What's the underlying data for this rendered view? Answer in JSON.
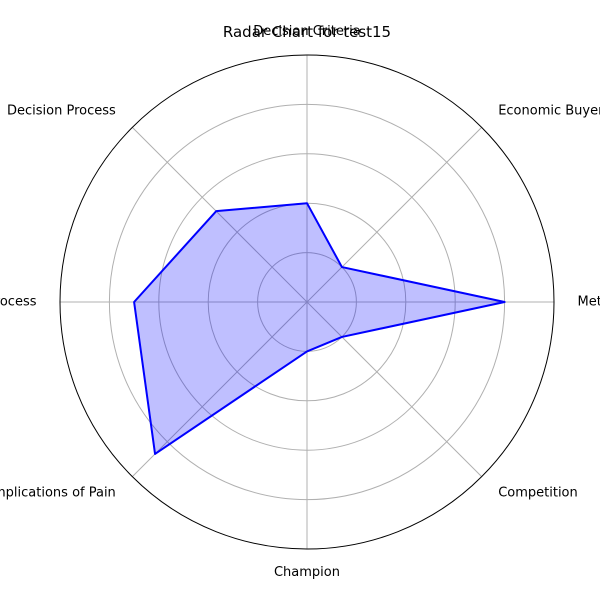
{
  "chart_data": {
    "type": "radar",
    "title": "Radar Chart for test15",
    "categories": [
      "Metrics",
      "Economic Buyer",
      "Decision Criteria",
      "Decision Process",
      "Paper Process",
      "Implications of Pain",
      "Champion",
      "Competition"
    ],
    "series": [
      {
        "values": [
          4.0,
          1.0,
          2.0,
          2.6,
          3.5,
          4.35,
          1.0,
          1.0
        ]
      }
    ],
    "rlim": [
      0,
      5
    ],
    "rticks": [
      1,
      2,
      3,
      4,
      5
    ],
    "grid": true,
    "colors": {
      "line": "#0000ff",
      "fill": "#0000ff",
      "grid": "#b0b0b0",
      "frame": "#000000"
    }
  }
}
